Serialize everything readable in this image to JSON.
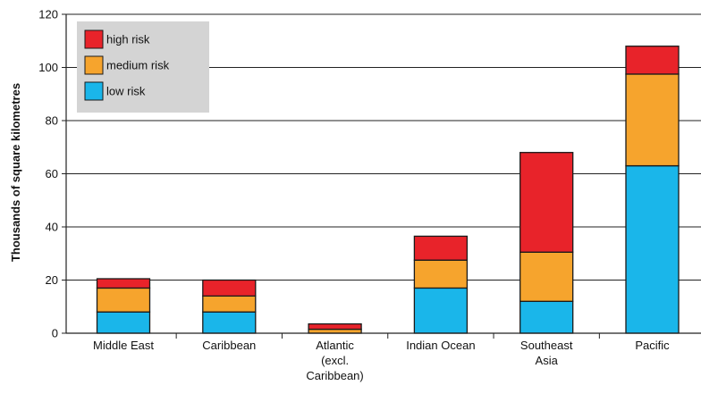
{
  "chart_data": {
    "type": "bar",
    "stacked": true,
    "title": "",
    "xlabel": "",
    "ylabel": "Thousands of square kilometres",
    "ylim": [
      0,
      120
    ],
    "yticks": [
      0,
      20,
      40,
      60,
      80,
      100,
      120
    ],
    "grid": "horizontal",
    "legend_position": "top-left",
    "categories": [
      [
        "Middle East"
      ],
      [
        "Caribbean"
      ],
      [
        "Atlantic",
        "(excl.",
        "Caribbean)"
      ],
      [
        "Indian Ocean"
      ],
      [
        "Southeast",
        "Asia"
      ],
      [
        "Pacific"
      ]
    ],
    "series": [
      {
        "name": "low risk",
        "color": "#1ab6ea",
        "values": [
          8,
          8,
          0,
          17,
          12,
          63
        ]
      },
      {
        "name": "medium risk",
        "color": "#f6a42d",
        "values": [
          9,
          6,
          1.5,
          10.5,
          18.5,
          34.5
        ]
      },
      {
        "name": "high risk",
        "color": "#e8232a",
        "values": [
          3.5,
          6,
          2,
          9,
          37.5,
          10.5
        ]
      }
    ],
    "legend_order": [
      "high risk",
      "medium risk",
      "low risk"
    ]
  }
}
